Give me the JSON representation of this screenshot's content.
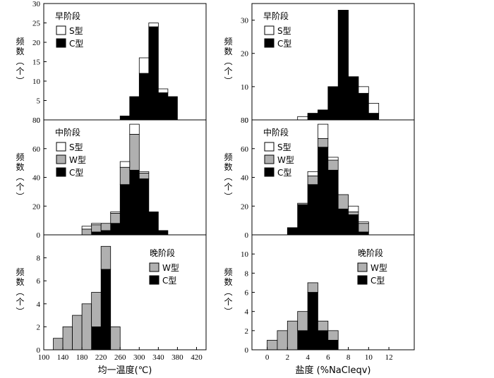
{
  "chart_data": [
    {
      "id": "hom-early",
      "type": "bar",
      "stacked": true,
      "stage_label": "早阶段",
      "ylabel": "频数（个）",
      "xlim": [
        100,
        440
      ],
      "ylim": [
        0,
        30
      ],
      "xticks": [],
      "yticks": [
        0,
        5,
        10,
        15,
        20,
        25,
        30
      ],
      "bin_width": 20,
      "bin_left_edges": [
        260,
        280,
        300,
        320,
        340,
        360
      ],
      "series": [
        {
          "name": "C型",
          "key": "C",
          "values": [
            1,
            6,
            12,
            24,
            7,
            6
          ]
        },
        {
          "name": "S型",
          "key": "S",
          "values": [
            0,
            0,
            4,
            1,
            1,
            0
          ]
        }
      ],
      "legend": [
        {
          "key": "S",
          "label": "S型"
        },
        {
          "key": "C",
          "label": "C型"
        }
      ],
      "legend_position": "top-left"
    },
    {
      "id": "sal-early",
      "type": "bar",
      "stacked": true,
      "stage_label": "早阶段",
      "ylabel": "频数（个）",
      "xlim": [
        -1.5,
        14.5
      ],
      "ylim": [
        0,
        35
      ],
      "xticks": [],
      "yticks": [
        0,
        10,
        20,
        30
      ],
      "bin_width": 1,
      "bin_left_edges": [
        3,
        4,
        5,
        6,
        7,
        8,
        9,
        10
      ],
      "series": [
        {
          "name": "C型",
          "key": "C",
          "values": [
            0,
            2,
            3,
            10,
            33,
            13,
            8,
            2
          ]
        },
        {
          "name": "S型",
          "key": "S",
          "values": [
            1,
            0,
            0,
            0,
            0,
            0,
            2,
            3
          ]
        }
      ],
      "legend": [
        {
          "key": "S",
          "label": "S型"
        },
        {
          "key": "C",
          "label": "C型"
        }
      ],
      "legend_position": "top-left"
    },
    {
      "id": "hom-middle",
      "type": "bar",
      "stacked": true,
      "stage_label": "中阶段",
      "ylabel": "频数（个）",
      "xlim": [
        100,
        440
      ],
      "ylim": [
        0,
        80
      ],
      "xticks": [],
      "yticks": [
        0,
        20,
        40,
        60,
        80
      ],
      "bin_width": 20,
      "bin_left_edges": [
        180,
        200,
        220,
        240,
        260,
        280,
        300,
        320,
        340
      ],
      "series": [
        {
          "name": "C型",
          "key": "C",
          "values": [
            0,
            2,
            3,
            8,
            35,
            45,
            39,
            16,
            3
          ]
        },
        {
          "name": "W型",
          "key": "W",
          "values": [
            4,
            5,
            5,
            7,
            12,
            25,
            4,
            0,
            0
          ]
        },
        {
          "name": "S型",
          "key": "S",
          "values": [
            2,
            1,
            0,
            1,
            4,
            7,
            1,
            0,
            0
          ]
        }
      ],
      "legend": [
        {
          "key": "S",
          "label": "S型"
        },
        {
          "key": "W",
          "label": "W型"
        },
        {
          "key": "C",
          "label": "C型"
        }
      ],
      "legend_position": "top-left"
    },
    {
      "id": "sal-middle",
      "type": "bar",
      "stacked": true,
      "stage_label": "中阶段",
      "ylabel": "频数（个）",
      "xlim": [
        -1.5,
        14.5
      ],
      "ylim": [
        0,
        80
      ],
      "xticks": [],
      "yticks": [
        0,
        20,
        40,
        60,
        80
      ],
      "bin_width": 1,
      "bin_left_edges": [
        2,
        3,
        4,
        5,
        6,
        7,
        8,
        9
      ],
      "series": [
        {
          "name": "C型",
          "key": "C",
          "values": [
            5,
            21,
            35,
            61,
            45,
            18,
            14,
            2
          ]
        },
        {
          "name": "W型",
          "key": "W",
          "values": [
            0,
            1,
            6,
            6,
            7,
            10,
            2,
            6
          ]
        },
        {
          "name": "S型",
          "key": "S",
          "values": [
            0,
            0,
            3,
            10,
            2,
            0,
            4,
            1
          ]
        }
      ],
      "legend": [
        {
          "key": "S",
          "label": "S型"
        },
        {
          "key": "W",
          "label": "W型"
        },
        {
          "key": "C",
          "label": "C型"
        }
      ],
      "legend_position": "top-left"
    },
    {
      "id": "hom-late",
      "type": "bar",
      "stacked": true,
      "stage_label": "晚阶段",
      "ylabel": "频数（个）",
      "xlabel": "均一温度(℃)",
      "xlim": [
        100,
        440
      ],
      "ylim": [
        0,
        10
      ],
      "xticks": [
        100,
        140,
        180,
        220,
        260,
        300,
        340,
        380,
        420
      ],
      "yticks": [
        0,
        2,
        4,
        6,
        8
      ],
      "bin_width": 20,
      "bin_left_edges": [
        120,
        140,
        160,
        180,
        200,
        220,
        240
      ],
      "series": [
        {
          "name": "C型",
          "key": "C",
          "values": [
            0,
            0,
            0,
            0,
            2,
            7,
            0
          ]
        },
        {
          "name": "W型",
          "key": "W",
          "values": [
            1,
            2,
            3,
            4,
            3,
            2,
            2
          ]
        }
      ],
      "legend": [
        {
          "key": "W",
          "label": "W型"
        },
        {
          "key": "C",
          "label": "C型"
        }
      ],
      "legend_position": "top-right"
    },
    {
      "id": "sal-late",
      "type": "bar",
      "stacked": true,
      "stage_label": "晚阶段",
      "ylabel": "频数（个）",
      "xlabel": "盐度 (%NaCleqv)",
      "xlim": [
        -1.5,
        14.5
      ],
      "ylim": [
        0,
        12
      ],
      "xticks": [
        0,
        2,
        4,
        6,
        8,
        10,
        12
      ],
      "yticks": [
        0,
        2,
        4,
        6,
        8,
        10
      ],
      "bin_width": 1,
      "bin_left_edges": [
        0,
        1,
        2,
        3,
        4,
        5,
        6
      ],
      "series": [
        {
          "name": "C型",
          "key": "C",
          "values": [
            0,
            0,
            0,
            2,
            6,
            2,
            1
          ]
        },
        {
          "name": "W型",
          "key": "W",
          "values": [
            1,
            2,
            3,
            2,
            1,
            1,
            1
          ]
        }
      ],
      "legend": [
        {
          "key": "W",
          "label": "W型"
        },
        {
          "key": "C",
          "label": "C型"
        }
      ],
      "legend_position": "top-right"
    }
  ],
  "colors": {
    "C": "#000000",
    "W": "#b0b0b0",
    "S": "#ffffff",
    "axis": "#000000"
  }
}
